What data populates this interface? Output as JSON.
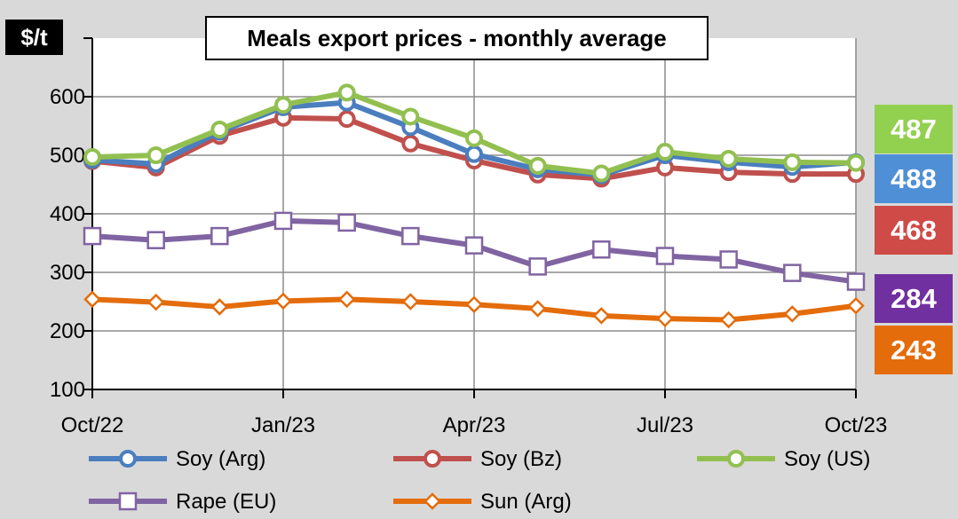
{
  "chart_data": {
    "type": "line",
    "title": "Meals export prices - monthly average",
    "unit": "$/t",
    "ylim": [
      100,
      700
    ],
    "y_ticks": [
      100,
      200,
      300,
      400,
      500,
      600
    ],
    "y_tick_labels": [
      "100",
      "200",
      "300",
      "400",
      "500",
      "600"
    ],
    "x_tick_labels": [
      "Oct/22",
      "Jan/23",
      "Apr/23",
      "Jul/23",
      "Oct/23"
    ],
    "x_tick_indices": [
      0,
      3,
      6,
      9,
      12
    ],
    "grid": true,
    "series": [
      {
        "name": "Soy (Arg)",
        "color": "#4a7ebf",
        "marker": "circle",
        "values": [
          492,
          485,
          540,
          582,
          590,
          548,
          502,
          476,
          466,
          500,
          488,
          480,
          488
        ],
        "last_label": "488"
      },
      {
        "name": "Soy (Bz)",
        "color": "#c0504d",
        "marker": "circle",
        "values": [
          490,
          479,
          533,
          564,
          562,
          520,
          491,
          467,
          460,
          479,
          471,
          468,
          468
        ],
        "last_label": "468"
      },
      {
        "name": "Soy (US)",
        "color": "#92c050",
        "marker": "circle",
        "values": [
          497,
          500,
          544,
          586,
          607,
          566,
          529,
          482,
          469,
          506,
          494,
          488,
          487
        ],
        "last_label": "487"
      },
      {
        "name": "Rape (EU)",
        "color": "#8064a2",
        "marker": "square",
        "values": [
          362,
          355,
          362,
          388,
          385,
          362,
          346,
          310,
          339,
          328,
          322,
          299,
          284
        ],
        "last_label": "284"
      },
      {
        "name": "Sun (Arg)",
        "color": "#e46c0a",
        "marker": "diamond",
        "values": [
          254,
          249,
          241,
          251,
          254,
          250,
          245,
          238,
          226,
          221,
          219,
          229,
          243
        ],
        "last_label": "243"
      }
    ],
    "end_badges": [
      {
        "series": "Soy (US)",
        "text": "487",
        "color": "#92d050"
      },
      {
        "series": "Soy (Arg)",
        "text": "488",
        "color": "#4f8fd6"
      },
      {
        "series": "Soy (Bz)",
        "text": "468",
        "color": "#cf4b47"
      },
      {
        "series": "Rape (EU)",
        "text": "284",
        "color": "#7030a0"
      },
      {
        "series": "Sun (Arg)",
        "text": "243",
        "color": "#e46c0a"
      }
    ],
    "legend": [
      "Soy (Arg)",
      "Soy (Bz)",
      "Soy (US)",
      "Rape (EU)",
      "Sun (Arg)"
    ]
  }
}
